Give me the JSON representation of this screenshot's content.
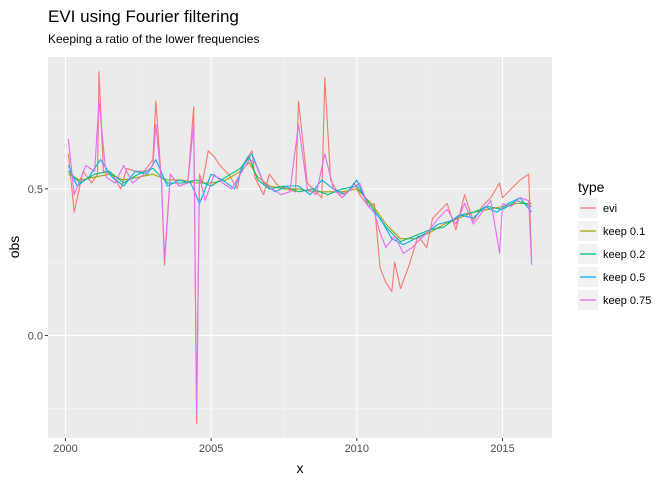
{
  "chart_data": {
    "type": "line",
    "title": "EVI  using Fourier filtering",
    "subtitle": "Keeping a ratio of the lower frequencies",
    "xlabel": "x",
    "ylabel": "obs",
    "xlim": [
      1999.4,
      2016.7
    ],
    "ylim": [
      -0.35,
      0.95
    ],
    "x_ticks": [
      2000,
      2005,
      2010,
      2015
    ],
    "x_tick_labels": [
      "2000",
      "2005",
      "2010",
      "2015"
    ],
    "y_ticks": [
      0.0,
      0.5
    ],
    "y_tick_labels": [
      "0.0",
      "0.5"
    ],
    "grid": true,
    "legend": {
      "title": "type",
      "position": "right",
      "entries": [
        "evi",
        "keep 0.1",
        "keep 0.2",
        "keep 0.5",
        "keep 0.75"
      ]
    },
    "series": [
      {
        "name": "evi",
        "color": "#F8766D",
        "x": [
          2000.1,
          2000.3,
          2000.6,
          2000.9,
          2001.1,
          2001.15,
          2001.3,
          2001.6,
          2001.9,
          2002.1,
          2002.4,
          2002.7,
          2003.0,
          2003.1,
          2003.3,
          2003.4,
          2003.6,
          2003.9,
          2004.2,
          2004.4,
          2004.5,
          2004.6,
          2004.7,
          2004.9,
          2005.1,
          2005.3,
          2005.6,
          2005.9,
          2006.0,
          2006.2,
          2006.4,
          2006.5,
          2006.8,
          2007.0,
          2007.3,
          2007.6,
          2007.9,
          2008.0,
          2008.3,
          2008.6,
          2008.8,
          2008.9,
          2009.1,
          2009.4,
          2009.7,
          2009.9,
          2010.1,
          2010.4,
          2010.6,
          2010.8,
          2011.0,
          2011.2,
          2011.3,
          2011.5,
          2011.8,
          2012.1,
          2012.4,
          2012.6,
          2012.9,
          2013.1,
          2013.4,
          2013.7,
          2014.0,
          2014.3,
          2014.6,
          2014.9,
          2015.0,
          2015.3,
          2015.6,
          2015.9,
          2016.0
        ],
        "values": [
          0.62,
          0.42,
          0.56,
          0.52,
          0.55,
          0.9,
          0.56,
          0.55,
          0.5,
          0.57,
          0.56,
          0.56,
          0.6,
          0.8,
          0.52,
          0.24,
          0.55,
          0.51,
          0.52,
          0.78,
          -0.3,
          0.55,
          0.52,
          0.63,
          0.61,
          0.58,
          0.55,
          0.5,
          0.56,
          0.6,
          0.63,
          0.54,
          0.48,
          0.55,
          0.51,
          0.5,
          0.49,
          0.8,
          0.52,
          0.49,
          0.47,
          0.88,
          0.53,
          0.48,
          0.49,
          0.52,
          0.48,
          0.44,
          0.45,
          0.23,
          0.18,
          0.15,
          0.25,
          0.16,
          0.24,
          0.34,
          0.3,
          0.4,
          0.43,
          0.45,
          0.36,
          0.48,
          0.39,
          0.44,
          0.47,
          0.52,
          0.47,
          0.5,
          0.53,
          0.55,
          0.26
        ]
      },
      {
        "name": "keep 0.1",
        "color": "#A3A500",
        "x": [
          2000.1,
          2000.5,
          2001.0,
          2001.5,
          2002.0,
          2002.5,
          2003.0,
          2003.5,
          2004.0,
          2004.5,
          2005.0,
          2005.5,
          2006.0,
          2006.3,
          2006.6,
          2007.0,
          2007.5,
          2008.0,
          2008.5,
          2009.0,
          2009.5,
          2010.0,
          2010.5,
          2011.0,
          2011.5,
          2012.0,
          2012.5,
          2013.0,
          2013.5,
          2014.0,
          2014.5,
          2015.0,
          2015.5,
          2016.0
        ],
        "values": [
          0.55,
          0.53,
          0.54,
          0.55,
          0.53,
          0.54,
          0.55,
          0.53,
          0.53,
          0.52,
          0.52,
          0.53,
          0.56,
          0.59,
          0.54,
          0.51,
          0.5,
          0.5,
          0.49,
          0.49,
          0.49,
          0.5,
          0.45,
          0.38,
          0.33,
          0.33,
          0.35,
          0.38,
          0.4,
          0.42,
          0.43,
          0.44,
          0.45,
          0.45
        ]
      },
      {
        "name": "keep 0.2",
        "color": "#00BF7D",
        "x": [
          2000.1,
          2000.5,
          2001.0,
          2001.5,
          2002.0,
          2002.5,
          2003.0,
          2003.5,
          2004.0,
          2004.5,
          2005.0,
          2005.5,
          2006.0,
          2006.3,
          2006.6,
          2007.0,
          2007.5,
          2008.0,
          2008.5,
          2009.0,
          2009.5,
          2010.0,
          2010.5,
          2011.0,
          2011.5,
          2012.0,
          2012.5,
          2013.0,
          2013.5,
          2014.0,
          2014.5,
          2015.0,
          2015.5,
          2016.0
        ],
        "values": [
          0.56,
          0.52,
          0.55,
          0.56,
          0.52,
          0.55,
          0.57,
          0.52,
          0.52,
          0.53,
          0.51,
          0.54,
          0.57,
          0.61,
          0.53,
          0.5,
          0.51,
          0.49,
          0.5,
          0.48,
          0.5,
          0.51,
          0.44,
          0.37,
          0.32,
          0.34,
          0.36,
          0.37,
          0.41,
          0.42,
          0.44,
          0.43,
          0.46,
          0.44
        ]
      },
      {
        "name": "keep 0.5",
        "color": "#00B0F6",
        "x": [
          2000.1,
          2000.4,
          2000.8,
          2001.2,
          2001.6,
          2002.0,
          2002.4,
          2002.8,
          2003.1,
          2003.5,
          2003.9,
          2004.3,
          2004.6,
          2005.0,
          2005.4,
          2005.8,
          2006.1,
          2006.4,
          2006.8,
          2007.2,
          2007.6,
          2008.0,
          2008.4,
          2008.8,
          2009.2,
          2009.6,
          2010.0,
          2010.4,
          2010.8,
          2011.2,
          2011.6,
          2012.0,
          2012.4,
          2012.8,
          2013.2,
          2013.6,
          2014.0,
          2014.4,
          2014.8,
          2015.2,
          2015.6,
          2016.0
        ],
        "values": [
          0.58,
          0.51,
          0.54,
          0.6,
          0.54,
          0.51,
          0.56,
          0.55,
          0.6,
          0.51,
          0.53,
          0.52,
          0.45,
          0.55,
          0.53,
          0.5,
          0.58,
          0.62,
          0.52,
          0.49,
          0.51,
          0.51,
          0.48,
          0.53,
          0.5,
          0.48,
          0.53,
          0.44,
          0.4,
          0.33,
          0.31,
          0.33,
          0.35,
          0.38,
          0.39,
          0.41,
          0.4,
          0.44,
          0.42,
          0.45,
          0.47,
          0.42
        ]
      },
      {
        "name": "keep 0.75",
        "color": "#E76BF3",
        "x": [
          2000.1,
          2000.3,
          2000.7,
          2001.0,
          2001.15,
          2001.4,
          2001.7,
          2002.0,
          2002.3,
          2002.7,
          2003.0,
          2003.1,
          2003.3,
          2003.4,
          2003.6,
          2003.9,
          2004.2,
          2004.4,
          2004.5,
          2004.6,
          2004.8,
          2005.1,
          2005.4,
          2005.7,
          2006.0,
          2006.3,
          2006.5,
          2006.8,
          2007.1,
          2007.4,
          2007.7,
          2008.0,
          2008.3,
          2008.6,
          2008.9,
          2009.2,
          2009.5,
          2009.8,
          2010.1,
          2010.4,
          2010.6,
          2010.8,
          2011.0,
          2011.3,
          2011.6,
          2011.9,
          2012.2,
          2012.5,
          2012.8,
          2013.1,
          2013.4,
          2013.7,
          2014.0,
          2014.3,
          2014.6,
          2014.9,
          2015.0,
          2015.3,
          2015.6,
          2015.9,
          2016.0
        ],
        "values": [
          0.67,
          0.48,
          0.58,
          0.56,
          0.8,
          0.54,
          0.52,
          0.58,
          0.52,
          0.55,
          0.58,
          0.72,
          0.52,
          0.26,
          0.55,
          0.51,
          0.52,
          0.72,
          -0.27,
          0.54,
          0.46,
          0.55,
          0.52,
          0.5,
          0.55,
          0.6,
          0.59,
          0.52,
          0.5,
          0.48,
          0.49,
          0.72,
          0.5,
          0.48,
          0.62,
          0.5,
          0.47,
          0.5,
          0.52,
          0.44,
          0.42,
          0.35,
          0.3,
          0.34,
          0.28,
          0.3,
          0.33,
          0.36,
          0.4,
          0.43,
          0.38,
          0.45,
          0.38,
          0.42,
          0.46,
          0.28,
          0.45,
          0.44,
          0.47,
          0.46,
          0.24
        ]
      }
    ]
  }
}
